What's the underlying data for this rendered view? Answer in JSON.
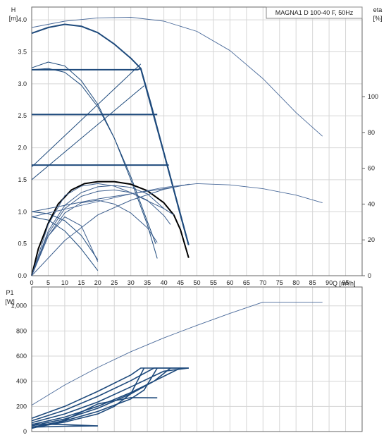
{
  "chart_data": [
    {
      "type": "line",
      "title": "MAGNA1 D 100-40 F, 50Hz",
      "xlabel": "Q [m³/h]",
      "ylabel_lines": [
        "H",
        "[m]"
      ],
      "y2label_lines": [
        "eta",
        "[%]"
      ],
      "xlim": [
        0,
        100
      ],
      "ylim": [
        0,
        4.2
      ],
      "y2lim": [
        0,
        150
      ],
      "x_ticks": [
        "0",
        "5",
        "10",
        "15",
        "20",
        "25",
        "30",
        "35",
        "40",
        "45",
        "50",
        "55",
        "60",
        "65",
        "70",
        "75",
        "80",
        "85",
        "90",
        "95"
      ],
      "y_ticks": [
        "0.0",
        "0.5",
        "1.0",
        "1.5",
        "2.0",
        "2.5",
        "3.0",
        "3.5",
        "4.0"
      ],
      "y2_ticks": [
        "0",
        "20",
        "40",
        "60",
        "80",
        "100"
      ],
      "grid": true,
      "colors": {
        "curve": "#1e4a7c",
        "thin": "#3d5f8e",
        "bold": "#000000",
        "efficiency": "#4a6a9a"
      },
      "series": [
        {
          "role": "head",
          "weight": "bold",
          "x": [
            0,
            5,
            10,
            15,
            20,
            25,
            30,
            33,
            36,
            40,
            43,
            45,
            47.5
          ],
          "y": [
            3.79,
            3.88,
            3.93,
            3.9,
            3.8,
            3.62,
            3.4,
            3.24,
            2.7,
            1.92,
            1.34,
            0.95,
            0.48
          ]
        },
        {
          "role": "head",
          "weight": "bold",
          "x": [
            0,
            5,
            10,
            15,
            20,
            25,
            30,
            32,
            33,
            40,
            47.5
          ],
          "y": [
            3.22,
            3.22,
            3.22,
            3.22,
            3.22,
            3.22,
            3.22,
            3.22,
            3.24,
            1.92,
            0.48
          ]
        },
        {
          "role": "head",
          "weight": "bold",
          "x": [
            0,
            38
          ],
          "y": [
            2.52,
            2.52
          ]
        },
        {
          "role": "head",
          "weight": "bold",
          "x": [
            0,
            41.5
          ],
          "y": [
            1.73,
            1.73
          ]
        },
        {
          "role": "head",
          "weight": "normal",
          "x": [
            0,
            33
          ],
          "y": [
            1.7,
            3.31
          ]
        },
        {
          "role": "head",
          "weight": "normal",
          "x": [
            0,
            34
          ],
          "y": [
            1.5,
            2.97
          ]
        },
        {
          "role": "head",
          "weight": "normal",
          "x": [
            0,
            5,
            10,
            15,
            20,
            25,
            30,
            35,
            38
          ],
          "y": [
            3.25,
            3.34,
            3.28,
            3.05,
            2.68,
            2.15,
            1.5,
            0.8,
            0.27
          ]
        },
        {
          "role": "head",
          "weight": "normal",
          "x": [
            0,
            5,
            10,
            15,
            20,
            25,
            30,
            35,
            37.5
          ],
          "y": [
            3.22,
            3.24,
            3.18,
            2.98,
            2.64,
            2.15,
            1.55,
            0.85,
            0.5
          ]
        },
        {
          "role": "head",
          "weight": "normal",
          "x": [
            0,
            5,
            10,
            15,
            20
          ],
          "y": [
            0.92,
            0.87,
            0.7,
            0.42,
            0.08
          ]
        },
        {
          "role": "head",
          "weight": "normal",
          "x": [
            0,
            5,
            10,
            15,
            20
          ],
          "y": [
            1.0,
            0.97,
            0.86,
            0.63,
            0.25
          ]
        },
        {
          "role": "eta",
          "weight": "bold",
          "x": [
            0,
            2,
            5,
            8,
            12,
            16,
            20,
            25,
            30,
            35,
            40,
            43,
            45,
            47.5
          ],
          "y": [
            0.0,
            0.42,
            0.82,
            1.12,
            1.34,
            1.44,
            1.47,
            1.47,
            1.43,
            1.33,
            1.14,
            0.95,
            0.72,
            0.28
          ]
        },
        {
          "role": "eta",
          "weight": "normal",
          "x": [
            0,
            5,
            10,
            15,
            20,
            25,
            30,
            35,
            40
          ],
          "y": [
            0.0,
            0.7,
            1.1,
            1.3,
            1.39,
            1.41,
            1.38,
            1.28,
            1.05
          ]
        },
        {
          "role": "eta",
          "weight": "normal",
          "x": [
            0,
            5,
            10,
            15,
            20,
            25,
            30,
            35,
            40,
            42
          ],
          "y": [
            0.0,
            0.66,
            1.05,
            1.24,
            1.32,
            1.34,
            1.3,
            1.18,
            0.94,
            0.8
          ]
        },
        {
          "role": "eta",
          "weight": "normal",
          "x": [
            0,
            5,
            10,
            15,
            20,
            25,
            30,
            35,
            38
          ],
          "y": [
            0.0,
            0.62,
            0.98,
            1.14,
            1.18,
            1.12,
            0.98,
            0.75,
            0.52
          ]
        },
        {
          "role": "eta",
          "weight": "normal",
          "x": [
            0,
            5,
            10,
            15,
            20
          ],
          "y": [
            0.0,
            0.62,
            0.92,
            0.78,
            0.22
          ]
        },
        {
          "role": "eta",
          "weight": "normal",
          "x": [
            0,
            5,
            10,
            15,
            20,
            25,
            30,
            33,
            40,
            43
          ],
          "y": [
            0.0,
            0.8,
            1.25,
            1.4,
            1.44,
            1.4,
            1.3,
            1.22,
            1.05,
            0.95
          ]
        },
        {
          "role": "eta",
          "weight": "normal",
          "x": [
            0,
            10,
            20,
            30,
            40,
            48
          ],
          "y": [
            1.0,
            1.1,
            1.2,
            1.28,
            1.36,
            1.43
          ]
        },
        {
          "role": "eta",
          "weight": "normal",
          "x": [
            0,
            10,
            20,
            30,
            40,
            47.5
          ],
          "y": [
            0.0,
            0.55,
            0.95,
            1.18,
            1.35,
            1.43
          ]
        },
        {
          "role": "eta",
          "weight": "normal",
          "x": [
            0,
            10,
            20,
            30,
            40,
            50,
            60,
            70,
            80,
            88
          ],
          "y": [
            0.92,
            1.04,
            1.16,
            1.28,
            1.38,
            1.44,
            1.42,
            1.36,
            1.26,
            1.14
          ]
        },
        {
          "role": "head",
          "weight": "normal",
          "x": [
            0,
            10,
            20,
            30,
            40,
            50,
            60,
            70,
            80,
            88
          ],
          "y": [
            3.88,
            3.98,
            4.03,
            4.04,
            3.98,
            3.82,
            3.52,
            3.08,
            2.55,
            2.18
          ]
        }
      ]
    },
    {
      "type": "line",
      "ylabel_lines": [
        "P1",
        "[W]"
      ],
      "xlim": [
        0,
        100
      ],
      "ylim": [
        0,
        1150
      ],
      "y_ticks": [
        "0",
        "200",
        "400",
        "600",
        "800",
        "1,000"
      ],
      "grid": true,
      "series": [
        {
          "weight": "normal",
          "x": [
            0,
            10,
            20,
            30,
            40,
            50,
            60,
            70,
            80,
            88
          ],
          "y": [
            210,
            370,
            510,
            635,
            745,
            845,
            940,
            1030,
            1030,
            1030
          ]
        },
        {
          "weight": "bold",
          "x": [
            0,
            10,
            20,
            30,
            33,
            40,
            47.5
          ],
          "y": [
            105,
            200,
            320,
            450,
            505,
            505,
            505
          ]
        },
        {
          "weight": "bold",
          "x": [
            0,
            10,
            20,
            30,
            37,
            47.5
          ],
          "y": [
            85,
            170,
            280,
            405,
            505,
            505
          ]
        },
        {
          "weight": "bold",
          "x": [
            0,
            10,
            20,
            30,
            40,
            47.5
          ],
          "y": [
            70,
            140,
            235,
            355,
            480,
            505
          ]
        },
        {
          "weight": "bold",
          "x": [
            0,
            10,
            20,
            30,
            40,
            45
          ],
          "y": [
            55,
            115,
            200,
            310,
            440,
            505
          ]
        },
        {
          "weight": "bold",
          "x": [
            0,
            10,
            20,
            30,
            37,
            42
          ],
          "y": [
            45,
            100,
            185,
            300,
            400,
            505
          ]
        },
        {
          "weight": "bold",
          "x": [
            0,
            10,
            20,
            30,
            34,
            38
          ],
          "y": [
            35,
            85,
            160,
            260,
            330,
            505
          ]
        },
        {
          "weight": "bold",
          "x": [
            0,
            10,
            20,
            25,
            30,
            34
          ],
          "y": [
            30,
            75,
            140,
            200,
            300,
            505
          ]
        },
        {
          "weight": "bold",
          "x": [
            0,
            10,
            20,
            30,
            38
          ],
          "y": [
            25,
            90,
            220,
            270,
            268
          ]
        },
        {
          "weight": "bold",
          "x": [
            0,
            10,
            20
          ],
          "y": [
            35,
            42,
            45
          ]
        },
        {
          "weight": "bold",
          "x": [
            0,
            10,
            20
          ],
          "y": [
            60,
            55,
            45
          ]
        }
      ]
    }
  ]
}
